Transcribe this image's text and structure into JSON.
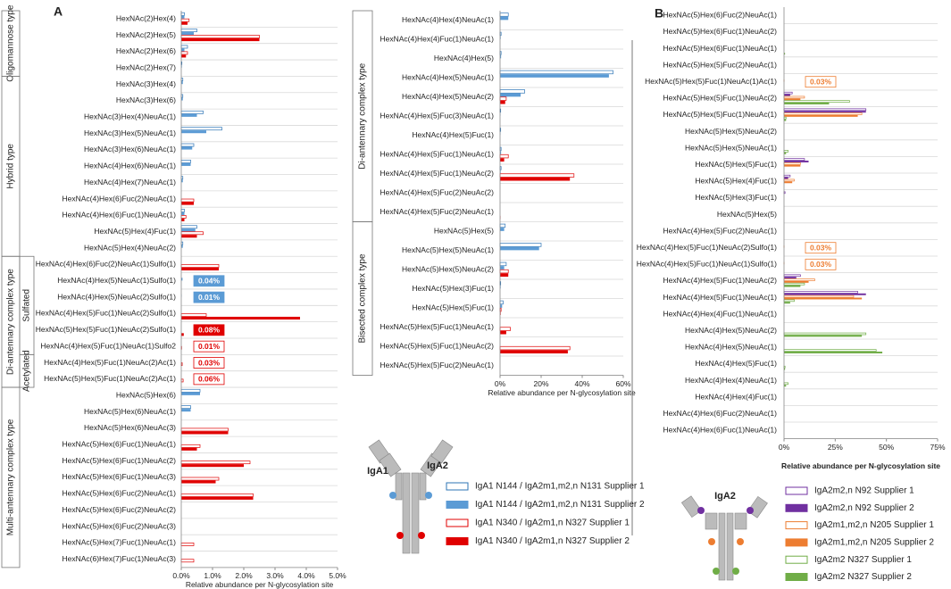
{
  "chart_data": [
    {
      "type": "barh",
      "panel_label": "A",
      "xlabel": "Relative abundance per N-glycosylation site",
      "xlim": [
        0,
        5
      ],
      "xticks": [
        {
          "value": 0,
          "label": "0.0%"
        },
        {
          "value": 1,
          "label": "1.0%"
        },
        {
          "value": 2,
          "label": "2.0%"
        },
        {
          "value": 3,
          "label": "3.0%"
        },
        {
          "value": 4,
          "label": "4.0%"
        },
        {
          "value": 5,
          "label": "5.0%"
        }
      ],
      "groups": [
        "Oligomannose type",
        "Hybrid type",
        "Di-antennary complex type",
        "Sulfated",
        "Acetylated",
        "Multi-antennary complex type"
      ],
      "diagram_labels": [
        "IgA1",
        "IgA2"
      ],
      "categories": [
        "HexNAc(2)Hex(4)",
        "HexNAc(2)Hex(5)",
        "HexNAc(2)Hex(6)",
        "HexNAc(2)Hex(7)",
        "HexNAc(3)Hex(4)",
        "HexNAc(3)Hex(6)",
        "HexNAc(3)Hex(4)NeuAc(1)",
        "HexNAc(3)Hex(5)NeuAc(1)",
        "HexNAc(3)Hex(6)NeuAc(1)",
        "HexNAc(4)Hex(6)NeuAc(1)",
        "HexNAc(4)Hex(7)NeuAc(1)",
        "HexNAc(4)Hex(6)Fuc(2)NeuAc(1)",
        "HexNAc(4)Hex(6)Fuc(1)NeuAc(1)",
        "HexNAc(5)Hex(4)Fuc(1)",
        "HexNAc(5)Hex(4)NeuAc(2)",
        "HexNAc(4)Hex(6)Fuc(2)NeuAc(1)Sulfo(1)",
        "HexNAc(4)Hex(5)NeuAc(1)Sulfo(1)",
        "HexNAc(4)Hex(5)NeuAc(2)Sulfo(1)",
        "HexNAc(4)Hex(5)Fuc(1)NeuAc(2)Sulfo(1)",
        "HexNAc(5)Hex(5)Fuc(1)NeuAc(2)Sulfo(1)",
        "HexNAc(4)Hex(5)Fuc(1)NeuAc(1)Sulfo2",
        "HexNAc(4)Hex(5)Fuc(1)NeuAc(2)Ac(1)",
        "HexNAc(5)Hex(5)Fuc(1)NeuAc(2)Ac(1)",
        "HexNAc(5)Hex(6)",
        "HexNAc(5)Hex(6)NeuAc(1)",
        "HexNAc(5)Hex(6)NeuAc(3)",
        "HexNAc(5)Hex(6)Fuc(1)NeuAc(1)",
        "HexNAc(5)Hex(6)Fuc(1)NeuAc(2)",
        "HexNAc(5)Hex(6)Fuc(1)NeuAc(3)",
        "HexNAc(5)Hex(6)Fuc(2)NeuAc(1)",
        "HexNAc(5)Hex(6)Fuc(2)NeuAc(2)",
        "HexNAc(5)Hex(6)Fuc(2)NeuAc(3)",
        "HexNAc(5)Hex(7)Fuc(1)NeuAc(1)",
        "HexNAc(6)Hex(7)Fuc(1)NeuAc(3)"
      ],
      "series": [
        {
          "name": "IgA1 N144 / IgA2m1,m2,n N131 Supplier 1",
          "color": "#2e75b6",
          "style": "outline",
          "values": [
            0.1,
            0.5,
            0.2,
            0.02,
            0.05,
            0.05,
            0.7,
            1.3,
            0.4,
            0.3,
            0.05,
            0,
            0.1,
            0.5,
            0.05,
            0,
            0,
            0,
            0,
            0,
            0,
            0,
            0,
            0.6,
            0.3,
            0,
            0,
            0,
            0,
            0,
            0,
            0,
            0,
            0
          ]
        },
        {
          "name": "IgA1 N144 / IgA2m1,m2,n N131 Supplier 2",
          "color": "#5b9bd5",
          "style": "solid",
          "values": [
            0.1,
            0.4,
            0.1,
            0.02,
            0.05,
            0.05,
            0.5,
            0.8,
            0.35,
            0.3,
            0.05,
            0,
            0.1,
            0.45,
            0.05,
            0,
            0.04,
            0.01,
            0,
            0,
            0,
            0,
            0,
            0.6,
            0.3,
            0,
            0,
            0,
            0,
            0,
            0,
            0,
            0,
            0
          ],
          "value_labels": [
            null,
            null,
            null,
            null,
            null,
            null,
            null,
            null,
            null,
            null,
            null,
            null,
            null,
            null,
            null,
            null,
            "0.04%",
            "0.01%",
            null,
            null,
            null,
            null,
            null,
            null,
            null,
            null,
            null,
            null,
            null,
            null,
            null,
            null,
            null,
            null
          ]
        },
        {
          "name": "IgA1 N340 / IgA2m1,n N327 Supplier 1",
          "color": "#e00000",
          "style": "outline",
          "values": [
            0.25,
            2.5,
            0.2,
            0,
            0,
            0,
            0,
            0,
            0,
            0,
            0,
            0.4,
            0.15,
            0.7,
            0,
            1.2,
            0,
            0,
            0.8,
            0,
            0.01,
            0.03,
            0.06,
            0,
            0,
            1.5,
            0.6,
            2.2,
            1.2,
            2.3,
            0,
            0,
            0.4,
            0.4
          ],
          "value_labels": [
            null,
            null,
            null,
            null,
            null,
            null,
            null,
            null,
            null,
            null,
            null,
            null,
            null,
            null,
            null,
            null,
            null,
            null,
            null,
            null,
            "0.01%",
            "0.03%",
            "0.06%",
            null,
            null,
            null,
            null,
            null,
            null,
            null,
            null,
            null,
            null,
            null
          ]
        },
        {
          "name": "IgA1 N340 / IgA2m1,n N327 Supplier 2",
          "color": "#e00000",
          "style": "solid",
          "values": [
            0.2,
            2.5,
            0.15,
            0,
            0,
            0,
            0,
            0,
            0,
            0,
            0,
            0.4,
            0.1,
            0.5,
            0,
            1.2,
            0,
            0,
            3.8,
            0.08,
            0,
            0,
            0,
            0,
            0,
            1.5,
            0.5,
            2.0,
            1.1,
            2.3,
            0,
            0,
            0,
            0
          ],
          "value_labels": [
            null,
            null,
            null,
            null,
            null,
            null,
            null,
            null,
            null,
            null,
            null,
            null,
            null,
            null,
            null,
            null,
            null,
            null,
            null,
            "0.08%",
            null,
            null,
            null,
            null,
            null,
            null,
            null,
            null,
            null,
            null,
            null,
            null,
            null,
            null
          ]
        }
      ]
    },
    {
      "type": "barh",
      "xlabel": "Relative abundance per N-glycosylation site",
      "xlim": [
        0,
        60
      ],
      "xticks": [
        {
          "value": 0,
          "label": "0%"
        },
        {
          "value": 20,
          "label": "20%"
        },
        {
          "value": 40,
          "label": "40%"
        },
        {
          "value": 60,
          "label": "60%"
        }
      ],
      "groups": [
        "Di-antennary complex type",
        "Bisected complex type"
      ],
      "categories": [
        "HexNAc(4)Hex(4)NeuAc(1)",
        "HexNAc(4)Hex(4)Fuc(1)NeuAc(1)",
        "HexNAc(4)Hex(5)",
        "HexNAc(4)Hex(5)NeuAc(1)",
        "HexNAc(4)Hex(5)NeuAc(2)",
        "HexNAc(4)Hex(5)Fuc(3)NeuAc(1)",
        "HexNAc(4)Hex(5)Fuc(1)",
        "HexNAc(4)Hex(5)Fuc(1)NeuAc(1)",
        "HexNAc(4)Hex(5)Fuc(1)NeuAc(2)",
        "HexNAc(4)Hex(5)Fuc(2)NeuAc(2)",
        "HexNAc(4)Hex(5)Fuc(2)NeuAc(1)",
        "HexNAc(5)Hex(5)",
        "HexNAc(5)Hex(5)NeuAc(1)",
        "HexNAc(5)Hex(5)NeuAc(2)",
        "HexNAc(5)Hex(3)Fuc(1)",
        "HexNAc(5)Hex(5)Fuc(1)",
        "HexNAc(5)Hex(5)Fuc(1)NeuAc(1)",
        "HexNAc(5)Hex(5)Fuc(1)NeuAc(2)",
        "HexNAc(5)Hex(5)Fuc(2)NeuAc(1)"
      ],
      "series": [
        {
          "color": "#2e75b6",
          "style": "outline",
          "values": [
            4,
            0.5,
            0.5,
            55,
            12,
            0.3,
            0.3,
            0.5,
            0.5,
            0,
            0,
            2.5,
            20,
            3,
            0.3,
            1.5,
            0,
            0,
            0
          ]
        },
        {
          "color": "#5b9bd5",
          "style": "solid",
          "values": [
            4,
            0.3,
            0.5,
            53,
            10,
            0.2,
            0.2,
            0.5,
            0.3,
            0,
            0,
            2,
            19,
            2,
            0.3,
            1,
            0,
            0,
            0
          ]
        },
        {
          "color": "#e00000",
          "style": "outline",
          "values": [
            0,
            0,
            0,
            0,
            3,
            0,
            0,
            4,
            36,
            0,
            0,
            0,
            0,
            4,
            0,
            0.5,
            5,
            34,
            0
          ]
        },
        {
          "color": "#e00000",
          "style": "solid",
          "values": [
            0,
            0,
            0,
            0,
            2.5,
            0,
            0,
            2,
            34,
            0,
            0.2,
            0,
            0,
            4,
            0,
            0.3,
            3,
            33,
            0
          ]
        }
      ]
    },
    {
      "type": "barh",
      "panel_label": "B",
      "xlabel": "Relative abundance per N-glycosylation site",
      "xlim": [
        0,
        75
      ],
      "xticks": [
        {
          "value": 0,
          "label": "0%"
        },
        {
          "value": 25,
          "label": "25%"
        },
        {
          "value": 50,
          "label": "50%"
        },
        {
          "value": 75,
          "label": "75%"
        }
      ],
      "diagram_labels": [
        "IgA2"
      ],
      "categories": [
        "HexNAc(5)Hex(6)Fuc(2)NeuAc(1)",
        "HexNAc(5)Hex(6)Fuc(1)NeuAc(2)",
        "HexNAc(5)Hex(6)Fuc(1)NeuAc(1)",
        "HexNAc(5)Hex(5)Fuc(2)NeuAc(1)",
        "HexNAc(5)Hex(5)Fuc(1)NeuAc(1)Ac(1)",
        "HexNAc(5)Hex(5)Fuc(1)NeuAc(2)",
        "HexNAc(5)Hex(5)Fuc(1)NeuAc(1)",
        "HexNAc(5)Hex(5)NeuAc(2)",
        "HexNAc(5)Hex(5)NeuAc(1)",
        "HexNAc(5)Hex(5)Fuc(1)",
        "HexNAc(5)Hex(4)Fuc(1)",
        "HexNAc(5)Hex(3)Fuc(1)",
        "HexNAc(5)Hex(5)",
        "HexNAc(4)Hex(5)Fuc(2)NeuAc(1)",
        "HexNAc(4)Hex(5)Fuc(1)NeuAc(2)Sulfo(1)",
        "HexNAc(4)Hex(5)Fuc(1)NeuAc(1)Sulfo(1)",
        "HexNAc(4)Hex(5)Fuc(1)NeuAc(2)",
        "HexNAc(4)Hex(5)Fuc(1)NeuAc(1)",
        "HexNAc(4)Hex(4)Fuc(1)NeuAc(1)",
        "HexNAc(4)Hex(5)NeuAc(2)",
        "HexNAc(4)Hex(5)NeuAc(1)",
        "HexNAc(4)Hex(5)Fuc(1)",
        "HexNAc(4)Hex(4)NeuAc(1)",
        "HexNAc(4)Hex(4)Fuc(1)",
        "HexNAc(4)Hex(6)Fuc(2)NeuAc(1)",
        "HexNAc(4)Hex(6)Fuc(1)NeuAc(1)"
      ],
      "series": [
        {
          "name": "IgA2m2,n N92 Supplier 1",
          "color": "#7030a0",
          "style": "outline",
          "values": [
            0,
            0,
            0,
            0,
            0,
            4,
            40,
            0,
            0,
            10,
            3,
            0.5,
            0,
            0,
            0,
            0,
            8,
            36,
            0,
            0,
            0,
            0,
            0,
            0,
            0,
            0
          ]
        },
        {
          "name": "IgA2m2,n N92 Supplier 2",
          "color": "#7030a0",
          "style": "solid",
          "values": [
            0,
            0,
            0,
            0,
            0,
            3,
            40,
            0,
            0,
            12,
            2,
            0,
            0,
            0,
            0,
            0,
            6,
            40,
            0,
            0,
            0,
            0,
            0,
            0,
            0,
            0
          ]
        },
        {
          "name": "IgA2m1,m2,n N205 Supplier 1",
          "color": "#ed7d31",
          "style": "outline",
          "values": [
            0,
            0,
            0,
            0,
            0.03,
            10,
            38,
            0,
            0,
            8,
            5,
            0,
            0,
            0,
            0.03,
            0.03,
            15,
            34,
            0,
            0,
            0,
            0,
            0,
            0,
            0,
            0
          ],
          "value_labels": [
            null,
            null,
            null,
            null,
            "0.03%",
            null,
            null,
            null,
            null,
            null,
            null,
            null,
            null,
            null,
            "0.03%",
            "0.03%",
            null,
            null,
            null,
            null,
            null,
            null,
            null,
            null,
            null,
            null
          ]
        },
        {
          "name": "IgA2m1,m2,n N205 Supplier 2",
          "color": "#ed7d31",
          "style": "solid",
          "values": [
            0,
            0,
            0,
            0,
            0,
            8,
            36,
            0,
            0,
            8,
            4,
            0,
            0,
            0,
            0,
            0,
            12,
            38,
            0,
            0,
            0,
            0,
            0,
            0,
            0,
            0
          ]
        },
        {
          "name": "IgA2m2 N327 Supplier 1",
          "color": "#70ad47",
          "style": "outline",
          "values": [
            0,
            0,
            0,
            0,
            0,
            32,
            1,
            0,
            2,
            0,
            0,
            0,
            0,
            0,
            0,
            0,
            10,
            5,
            0,
            40,
            45,
            0.5,
            2,
            0,
            0,
            0
          ]
        },
        {
          "name": "IgA2m2 N327 Supplier 2",
          "color": "#70ad47",
          "style": "solid",
          "values": [
            0,
            0,
            0.5,
            0,
            0,
            22,
            1,
            0,
            1,
            0,
            0,
            0,
            0,
            0,
            0,
            0,
            8,
            3,
            0,
            38,
            48,
            0.5,
            1,
            0,
            0,
            0
          ]
        }
      ]
    }
  ]
}
